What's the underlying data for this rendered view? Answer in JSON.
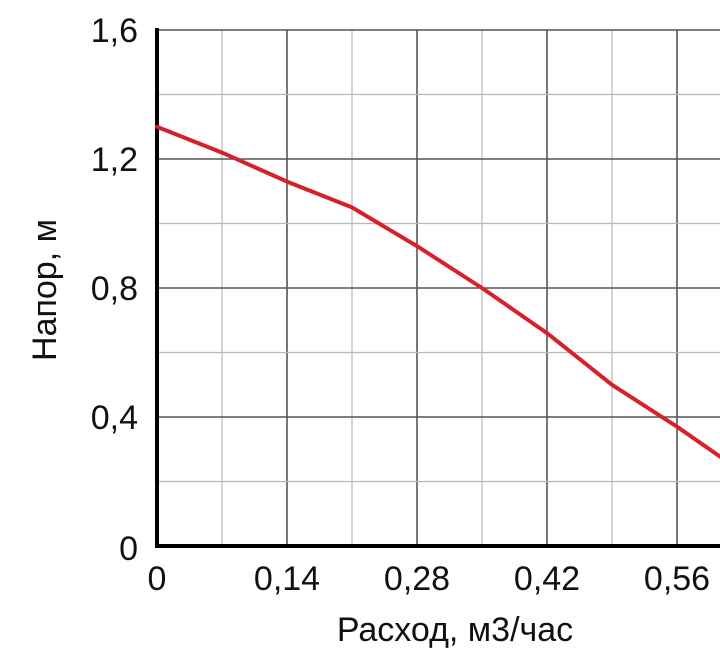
{
  "chart_data": {
    "type": "line",
    "title": "",
    "xlabel": "Расход, м3/час",
    "ylabel": "Напор, м",
    "xlim": [
      0,
      0.62
    ],
    "ylim": [
      0,
      1.6
    ],
    "x_ticks": [
      "0",
      "0,14",
      "0,28",
      "0,42",
      "0,56"
    ],
    "x_tick_values": [
      0,
      0.14,
      0.28,
      0.42,
      0.56
    ],
    "y_ticks": [
      "0",
      "0,4",
      "0,8",
      "1,2",
      "1,6"
    ],
    "y_tick_values": [
      0,
      0.4,
      0.8,
      1.2,
      1.6
    ],
    "grid": true,
    "grid_x_step": 0.07,
    "grid_y_step": 0.2,
    "series": [
      {
        "color": "#d8202b",
        "x": [
          0,
          0.07,
          0.14,
          0.21,
          0.28,
          0.35,
          0.42,
          0.49,
          0.56,
          0.62
        ],
        "y": [
          1.3,
          1.22,
          1.13,
          1.05,
          0.93,
          0.8,
          0.66,
          0.5,
          0.37,
          0.25
        ]
      }
    ]
  }
}
